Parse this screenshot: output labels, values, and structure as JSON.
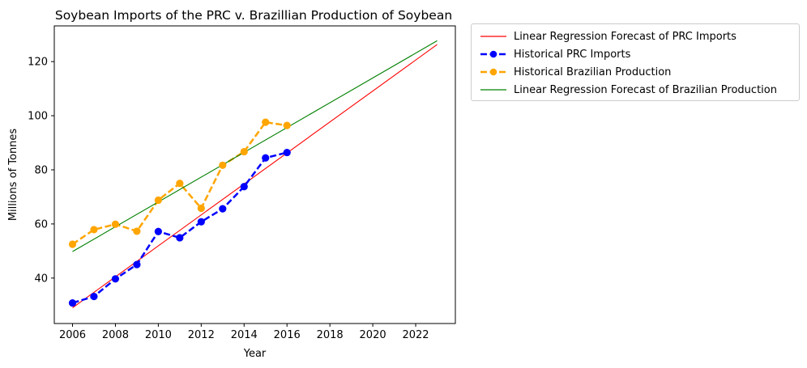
{
  "chart_data": {
    "type": "line",
    "title": "Soybean Imports of the PRC v. Brazillian Production of Soybean",
    "xlabel": "Year",
    "ylabel": "Millions of Tonnes",
    "xlim": [
      2005.15,
      2023.85
    ],
    "ylim": [
      23.2,
      133.2
    ],
    "xticks": [
      2006,
      2008,
      2010,
      2012,
      2014,
      2016,
      2018,
      2020,
      2022
    ],
    "yticks": [
      40,
      60,
      80,
      100,
      120
    ],
    "grid": false,
    "legend_position": "outside-upper-right",
    "series": [
      {
        "name": "Linear Regression Forecast of PRC Imports",
        "style": "solid",
        "color": "#ff0000",
        "markers": false,
        "x": [
          2006,
          2023
        ],
        "y": [
          29.0,
          126.3
        ]
      },
      {
        "name": "Historical PRC Imports",
        "style": "dashed",
        "color": "#0000ff",
        "markers": true,
        "x": [
          2006,
          2007,
          2008,
          2009,
          2010,
          2011,
          2012,
          2013,
          2014,
          2015,
          2016
        ],
        "y": [
          30.8,
          33.2,
          39.7,
          45.0,
          57.2,
          54.9,
          60.8,
          65.6,
          73.8,
          84.4,
          86.4
        ]
      },
      {
        "name": "Historical Brazilian Production",
        "style": "dashed",
        "color": "#ffa500",
        "markers": true,
        "x": [
          2006,
          2007,
          2008,
          2009,
          2010,
          2011,
          2012,
          2013,
          2014,
          2015,
          2016
        ],
        "y": [
          52.5,
          57.9,
          59.9,
          57.3,
          68.8,
          75.0,
          65.8,
          81.7,
          86.7,
          97.6,
          96.4
        ]
      },
      {
        "name": "Linear Regression Forecast of Brazilian Production",
        "style": "solid",
        "color": "#008000",
        "markers": false,
        "x": [
          2006,
          2023
        ],
        "y": [
          49.8,
          127.7
        ]
      }
    ]
  }
}
